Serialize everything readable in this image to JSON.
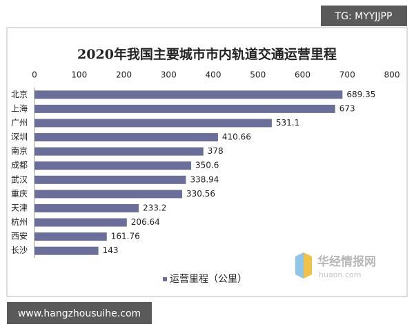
{
  "chart_data": {
    "type": "bar",
    "orientation": "horizontal",
    "title": "2020年我国主要城市市内轨道交通运营里程",
    "categories": [
      "北京",
      "上海",
      "广州",
      "深圳",
      "南京",
      "成都",
      "武汉",
      "重庆",
      "天津",
      "杭州",
      "西安",
      "长沙"
    ],
    "series": [
      {
        "name": "运营里程（公里）",
        "color": "#6b6e98",
        "values": [
          689.35,
          673,
          531.1,
          410.66,
          378,
          350.6,
          338.94,
          330.56,
          233.2,
          206.64,
          161.76,
          143
        ]
      }
    ],
    "xlim": [
      0,
      800
    ],
    "xticks": [
      0,
      100,
      200,
      300,
      400,
      500,
      600,
      700,
      800
    ],
    "legend": "bottom",
    "grid": false
  },
  "overlays": {
    "tag": "TG: MYYJJPP",
    "site": "www.hangzhousuihe.com",
    "logo_name": "华经情报网",
    "logo_url": "huaon.com"
  }
}
